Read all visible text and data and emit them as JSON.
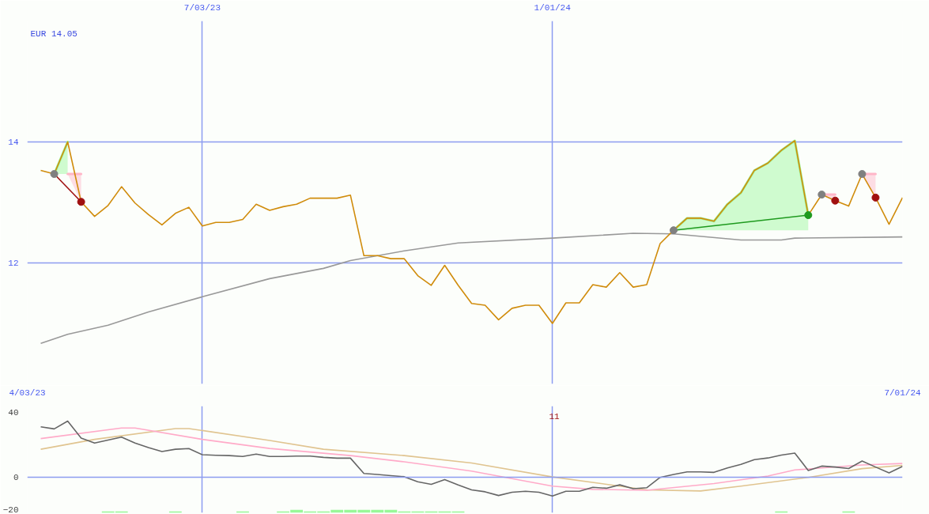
{
  "chart_data": [
    {
      "type": "line",
      "subtitle": "EUR 14.05",
      "x": [
        "2023-04-10",
        "2023-04-17",
        "2023-04-24",
        "2023-05-01",
        "2023-05-08",
        "2023-05-15",
        "2023-05-22",
        "2023-05-29",
        "2023-06-05",
        "2023-06-12",
        "2023-06-19",
        "2023-06-26",
        "2023-07-03",
        "2023-07-10",
        "2023-07-17",
        "2023-07-24",
        "2023-07-31",
        "2023-08-07",
        "2023-08-14",
        "2023-08-21",
        "2023-08-28",
        "2023-09-04",
        "2023-09-11",
        "2023-09-18",
        "2023-09-25",
        "2023-10-02",
        "2023-10-09",
        "2023-10-16",
        "2023-10-23",
        "2023-10-30",
        "2023-11-06",
        "2023-11-13",
        "2023-11-20",
        "2023-11-27",
        "2023-12-04",
        "2023-12-11",
        "2023-12-18",
        "2023-12-25",
        "2024-01-01",
        "2024-01-08",
        "2024-01-15",
        "2024-01-22",
        "2024-01-29",
        "2024-02-05",
        "2024-02-12",
        "2024-02-19",
        "2024-02-26",
        "2024-03-04",
        "2024-03-11",
        "2024-03-18",
        "2024-03-25",
        "2024-04-01",
        "2024-04-08",
        "2024-04-15",
        "2024-04-22",
        "2024-04-29",
        "2024-05-06",
        "2024-05-13",
        "2024-05-20",
        "2024-05-27",
        "2024-06-03",
        "2024-06-10",
        "2024-06-17",
        "2024-06-24",
        "2024-07-01"
      ],
      "series": [
        {
          "color": "#98f898",
          "x": [
            "2023-04-17",
            "2023-04-24"
          ],
          "values": [
            13.47,
            14.0
          ],
          "lower": [
            13.47,
            13.47
          ],
          "upper": [
            13.47,
            14.0
          ]
        },
        {
          "color": "#ffb6c8",
          "x": [
            "2023-04-24",
            "2023-05-01"
          ],
          "values": [
            13.47,
            13.47
          ],
          "lower": [
            13.47,
            13.01
          ],
          "upper": [
            13.47,
            13.47
          ]
        },
        {
          "color": "#98f898",
          "x": [
            "2024-03-04",
            "2024-03-11",
            "2024-03-18",
            "2024-03-25",
            "2024-04-01",
            "2024-04-08",
            "2024-04-15",
            "2024-04-22",
            "2024-04-29",
            "2024-05-06",
            "2024-05-13"
          ],
          "values": [
            12.54,
            12.74,
            12.74,
            12.69,
            12.97,
            13.16,
            13.53,
            13.65,
            13.86,
            14.02,
            12.79
          ],
          "lower": [
            12.54,
            12.54,
            12.54,
            12.54,
            12.54,
            12.54,
            12.54,
            12.54,
            12.54,
            12.54,
            12.54
          ],
          "upper": [
            12.54,
            12.74,
            12.74,
            12.69,
            12.97,
            13.16,
            13.53,
            13.65,
            13.86,
            14.02,
            12.79
          ]
        },
        {
          "color": "#ffb6c8",
          "x": [
            "2024-05-20",
            "2024-05-27"
          ],
          "values": [
            13.13,
            13.13
          ],
          "lower": [
            13.13,
            13.03
          ],
          "upper": [
            13.13,
            13.13
          ]
        },
        {
          "color": "#ffb6c8",
          "x": [
            "2024-06-10",
            "2024-06-17"
          ],
          "values": [
            13.47,
            13.47
          ],
          "lower": [
            13.47,
            13.08
          ],
          "upper": [
            13.47,
            13.47
          ]
        },
        {
          "color": "#999999",
          "x": [
            "2023-04-10",
            "2023-04-24",
            "2023-05-15",
            "2023-06-05",
            "2023-07-03",
            "2023-08-07",
            "2023-09-04",
            "2023-09-18",
            "2023-10-16",
            "2023-11-13",
            "2024-01-01",
            "2024-02-12",
            "2024-03-04",
            "2024-04-08",
            "2024-04-29",
            "2024-05-06",
            "2024-07-01"
          ],
          "values": [
            10.67,
            10.82,
            10.97,
            11.19,
            11.44,
            11.74,
            11.91,
            12.04,
            12.2,
            12.33,
            12.41,
            12.49,
            12.48,
            12.38,
            12.38,
            12.41,
            12.43
          ]
        },
        {
          "color": "#d08c0c",
          "values": [
            13.53,
            13.47,
            14.0,
            13.01,
            12.77,
            12.95,
            13.26,
            12.99,
            12.8,
            12.63,
            12.82,
            12.92,
            12.61,
            12.67,
            12.67,
            12.72,
            12.97,
            12.87,
            12.93,
            12.97,
            13.07,
            13.07,
            13.07,
            13.12,
            12.12,
            12.12,
            12.07,
            12.07,
            11.79,
            11.63,
            11.96,
            11.63,
            11.33,
            11.3,
            11.06,
            11.25,
            11.3,
            11.3,
            11.0,
            11.34,
            11.34,
            11.64,
            11.6,
            11.84,
            11.6,
            11.64,
            12.32,
            12.54,
            12.74,
            12.74,
            12.69,
            12.97,
            13.16,
            13.53,
            13.65,
            13.86,
            14.02,
            12.79,
            13.13,
            13.03,
            12.94,
            13.47,
            13.08,
            12.64,
            13.08
          ]
        },
        {
          "color": "#a01010",
          "x": [
            "2023-04-17",
            "2023-05-01"
          ],
          "values": [
            13.47,
            13.01
          ]
        },
        {
          "color": "#1e9a1e",
          "x": [
            "2024-03-04",
            "2024-05-13"
          ],
          "values": [
            12.54,
            12.79
          ]
        },
        {
          "type": "scatter",
          "marker": "circle",
          "color": "#808080",
          "x": [
            "2023-04-17",
            "2024-03-04",
            "2024-05-20",
            "2024-06-10"
          ],
          "values": [
            13.47,
            12.54,
            13.13,
            13.47
          ]
        },
        {
          "type": "scatter",
          "marker": "circle",
          "color": "#a01010",
          "x": [
            "2023-05-01",
            "2024-05-27",
            "2024-06-17"
          ],
          "values": [
            13.01,
            13.03,
            13.08
          ]
        },
        {
          "type": "scatter",
          "marker": "circle",
          "color": "#1e9a1e",
          "x": [
            "2024-05-13"
          ],
          "values": [
            12.79
          ]
        }
      ],
      "xlim": [
        "2023-04-03",
        "2024-07-01"
      ],
      "xticks": [
        {
          "value": "2023-07-03",
          "label": "7/03/23"
        },
        {
          "value": "2024-01-01",
          "label": "1/01/24"
        }
      ],
      "ylim": [
        10,
        16
      ],
      "yticks": [
        12,
        14
      ],
      "grid": true
    },
    {
      "type": "line",
      "series": [
        {
          "type": "bar",
          "color": "#98f898",
          "x": [
            "2023-05-15",
            "2023-05-22",
            "2023-06-19",
            "2023-07-24",
            "2023-08-14",
            "2023-08-21",
            "2023-08-28",
            "2023-09-04",
            "2023-09-11",
            "2023-09-18",
            "2023-09-25",
            "2023-10-02",
            "2023-10-09",
            "2023-10-16",
            "2023-10-23",
            "2023-10-30",
            "2023-11-06",
            "2023-11-13",
            "2024-04-29",
            "2024-06-03"
          ],
          "base": [
            -22,
            -22,
            -22,
            -22,
            -22,
            -22,
            -22,
            -22,
            -22,
            -22,
            -22,
            -22,
            -22,
            -22,
            -22,
            -22,
            -22,
            -22,
            -22,
            -22
          ],
          "values": [
            0.8,
            0.8,
            0.8,
            0.8,
            0.8,
            1.8,
            0.8,
            0.8,
            1.8,
            1.8,
            1.8,
            1.8,
            1.8,
            0.8,
            0.8,
            0.8,
            0.8,
            0.8,
            0.8,
            0.8
          ]
        },
        {
          "color": "#e0c490",
          "x": [
            "2023-04-10",
            "2023-05-08",
            "2023-06-19",
            "2023-06-26",
            "2023-08-07",
            "2023-09-04",
            "2023-10-16",
            "2023-11-20",
            "2024-01-01",
            "2024-02-19",
            "2024-03-18",
            "2024-04-08",
            "2024-05-13",
            "2024-06-10",
            "2024-07-01"
          ],
          "values": [
            17.3,
            23.4,
            30.1,
            30.1,
            22.7,
            17.3,
            13.4,
            8.8,
            0.2,
            -7.8,
            -8.5,
            -5.5,
            -0.1,
            5.3,
            7.3
          ]
        },
        {
          "color": "#ffaac8",
          "x": [
            "2023-04-10",
            "2023-05-22",
            "2023-05-29",
            "2023-07-03",
            "2023-08-07",
            "2023-09-18",
            "2023-10-16",
            "2023-11-20",
            "2024-01-01",
            "2024-01-22",
            "2024-02-19",
            "2024-03-25",
            "2024-04-22",
            "2024-05-06",
            "2024-06-10",
            "2024-07-01"
          ],
          "values": [
            23.9,
            30.4,
            30.4,
            23.4,
            17.8,
            13.4,
            9.5,
            3.8,
            -5.5,
            -7.5,
            -8.1,
            -3.9,
            0.7,
            4.5,
            7.6,
            8.5
          ]
        },
        {
          "color": "#666666",
          "x": [
            "2023-04-10",
            "2023-04-17",
            "2023-04-24",
            "2023-05-01",
            "2023-05-08",
            "2023-05-15",
            "2023-05-22",
            "2023-05-29",
            "2023-06-05",
            "2023-06-12",
            "2023-06-19",
            "2023-06-26",
            "2023-07-03",
            "2023-07-10",
            "2023-07-17",
            "2023-07-24",
            "2023-07-31",
            "2023-08-07",
            "2023-08-14",
            "2023-08-21",
            "2023-08-28",
            "2023-09-04",
            "2023-09-11",
            "2023-09-18",
            "2023-09-25",
            "2023-10-02",
            "2023-10-09",
            "2023-10-16",
            "2023-10-23",
            "2023-10-30",
            "2023-11-06",
            "2023-11-13",
            "2023-11-20",
            "2023-11-27",
            "2023-12-04",
            "2023-12-11",
            "2023-12-18",
            "2023-12-25",
            "2024-01-01",
            "2024-01-08",
            "2024-01-15",
            "2024-01-22",
            "2024-01-29",
            "2024-02-05",
            "2024-02-12",
            "2024-02-19",
            "2024-02-26",
            "2024-03-04",
            "2024-03-11",
            "2024-03-18",
            "2024-03-25",
            "2024-04-01",
            "2024-04-08",
            "2024-04-15",
            "2024-04-22",
            "2024-04-29",
            "2024-05-06",
            "2024-05-13",
            "2024-05-20",
            "2024-05-27",
            "2024-06-03",
            "2024-06-10",
            "2024-06-17",
            "2024-06-24",
            "2024-07-01"
          ],
          "values": [
            31.2,
            29.9,
            34.7,
            24.2,
            21.1,
            23.0,
            24.8,
            21.1,
            18.3,
            15.9,
            17.3,
            17.7,
            13.9,
            13.6,
            13.4,
            12.8,
            14.3,
            12.8,
            12.8,
            13.1,
            13.1,
            12.3,
            11.8,
            11.8,
            2.3,
            1.7,
            1.0,
            0.3,
            -2.8,
            -4.4,
            -1.5,
            -4.8,
            -7.8,
            -9.0,
            -11.3,
            -9.3,
            -8.7,
            -9.3,
            -11.6,
            -8.7,
            -8.7,
            -6.2,
            -6.8,
            -4.7,
            -7.1,
            -6.5,
            -0.1,
            1.7,
            3.3,
            3.3,
            3.0,
            5.7,
            7.9,
            10.9,
            11.9,
            13.7,
            14.9,
            4.2,
            6.9,
            6.3,
            5.4,
            10.0,
            6.3,
            2.7,
            6.7
          ]
        }
      ],
      "xlim": [
        "2023-04-03",
        "2024-07-01"
      ],
      "xticks": [
        {
          "value": "2023-04-03",
          "label": "4/03/23"
        },
        {
          "value": "2024-07-01",
          "label": "7/01/24"
        },
        {
          "value": "2023-07-03",
          "label": null
        },
        {
          "value": "2024-01-01",
          "label": null
        }
      ],
      "ylim": [
        -22,
        44
      ],
      "yticks": [
        40,
        0,
        -20
      ],
      "grid": "x",
      "ref_lines": [
        {
          "axis": "y",
          "value": 0,
          "color": "#8c9cf0"
        }
      ],
      "annotations": [
        "11"
      ]
    }
  ]
}
